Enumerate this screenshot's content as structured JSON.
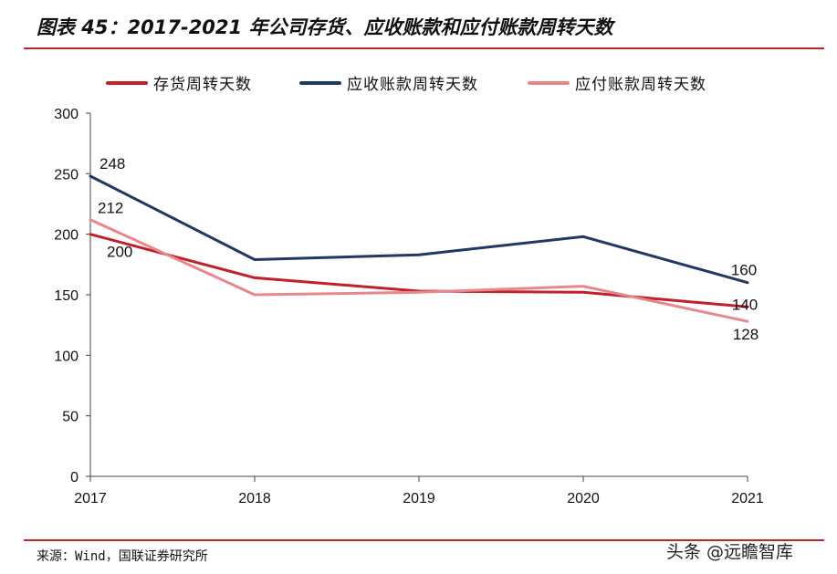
{
  "title": "图表 45：2017-2021 年公司存货、应收账款和应付账款周转天数",
  "source": "来源：Wind，国联证券研究所",
  "watermark": "头条 @远瞻智库",
  "chart_data": {
    "type": "line",
    "categories": [
      "2017",
      "2018",
      "2019",
      "2020",
      "2021"
    ],
    "ylim": [
      0,
      300
    ],
    "yticks": [
      0,
      50,
      100,
      150,
      200,
      250,
      300
    ],
    "grid": false,
    "legend_position": "top",
    "series": [
      {
        "name": "存货周转天数",
        "color": "#c0202a",
        "values": [
          200,
          164,
          153,
          152,
          140
        ]
      },
      {
        "name": "应收账款周转天数",
        "color": "#1f3864",
        "values": [
          248,
          179,
          183,
          198,
          160
        ]
      },
      {
        "name": "应付账款周转天数",
        "color": "#e8868a",
        "values": [
          212,
          150,
          152,
          157,
          128
        ]
      }
    ],
    "data_labels": [
      {
        "series": 0,
        "index": 0,
        "text": "200"
      },
      {
        "series": 0,
        "index": 4,
        "text": "140"
      },
      {
        "series": 1,
        "index": 0,
        "text": "248"
      },
      {
        "series": 1,
        "index": 4,
        "text": "160"
      },
      {
        "series": 2,
        "index": 0,
        "text": "212"
      },
      {
        "series": 2,
        "index": 4,
        "text": "128"
      }
    ]
  }
}
